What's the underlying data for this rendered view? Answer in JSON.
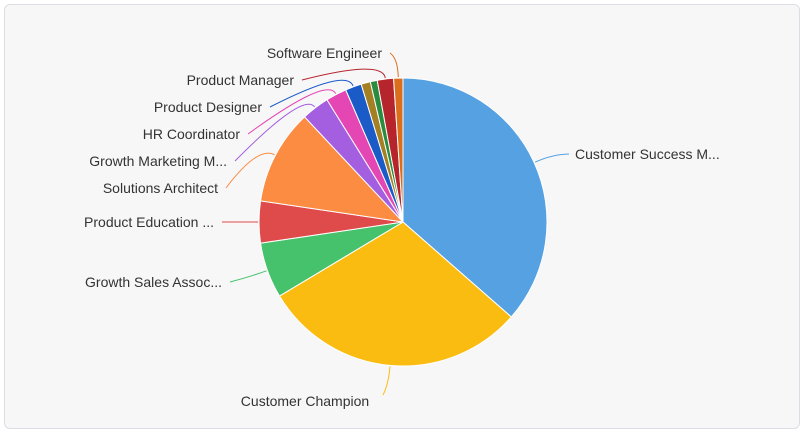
{
  "chart_data": {
    "type": "pie",
    "title": "",
    "series": [
      {
        "name": "Customer Success M...",
        "value": 140,
        "color": "#55a1e2"
      },
      {
        "name": "Customer Champion",
        "value": 115,
        "color": "#fbbc12"
      },
      {
        "name": "Growth Sales Assoc...",
        "value": 24,
        "color": "#47c26c"
      },
      {
        "name": "Product Education ...",
        "value": 18,
        "color": "#df4a4a"
      },
      {
        "name": "Solutions Architect",
        "value": 41,
        "color": "#fb8c42"
      },
      {
        "name": "Growth Marketing M...",
        "value": 12,
        "color": "#a45ee0"
      },
      {
        "name": "HR Coordinator",
        "value": 9,
        "color": "#e446b3"
      },
      {
        "name": "Product Designer",
        "value": 7,
        "color": "#1b5bc8"
      },
      {
        "name": "",
        "value": 4,
        "color": "#a47f23"
      },
      {
        "name": "",
        "value": 3,
        "color": "#2a8c3f"
      },
      {
        "name": "Product Manager",
        "value": 7,
        "color": "#b6242c"
      },
      {
        "name": "Software Engineer",
        "value": 4,
        "color": "#db6e1c"
      }
    ]
  }
}
